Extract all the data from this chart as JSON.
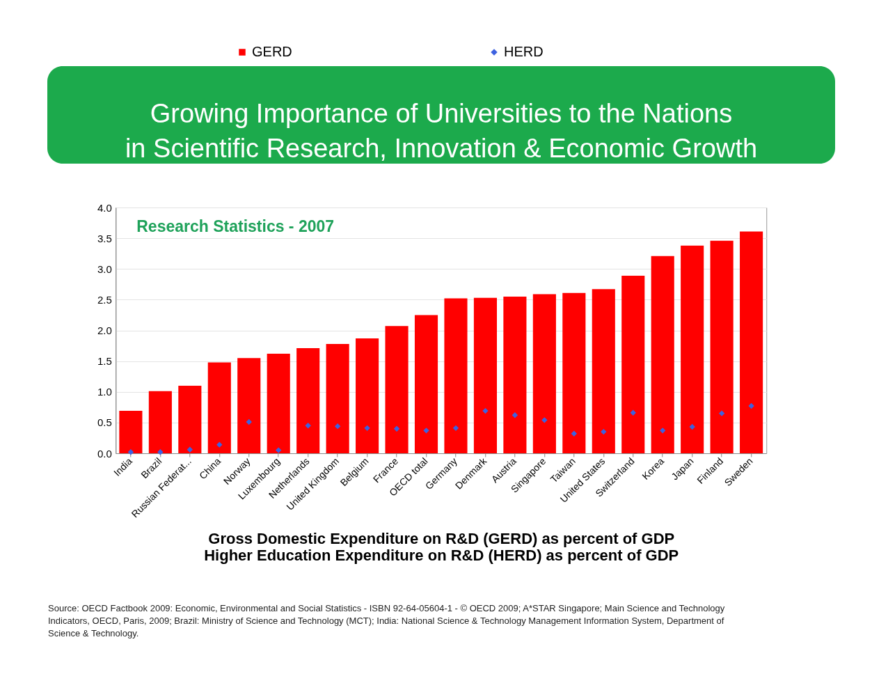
{
  "chart_data": {
    "type": "bar",
    "title": "Growing Importance of Universities to the Nations\nin Scientific Research, Innovation & Economic Growth",
    "xlabel": "Gross Domestic Expenditure on R&D (GERD) as percent of GDP\nHigher Education Expenditure on R&D (HERD) as percent of GDP",
    "categories": [
      "India",
      "Brazil",
      "Russian Federat...",
      "China",
      "Norway",
      "Luxembourg",
      "Netherlands",
      "United Kingdom",
      "Belgium",
      "France",
      "OECD total",
      "Germany",
      "Denmark",
      "Austria",
      "Singapore",
      "Taiwan",
      "United States",
      "Switzerland",
      "Korea",
      "Japan",
      "Finland",
      "Sweden"
    ],
    "series": [
      {
        "name": "GERD",
        "color": "#ff0000",
        "values": [
          0.69,
          1.01,
          1.1,
          1.48,
          1.55,
          1.62,
          1.71,
          1.78,
          1.87,
          2.07,
          2.25,
          2.52,
          2.53,
          2.55,
          2.59,
          2.61,
          2.67,
          2.89,
          3.21,
          3.38,
          3.46,
          3.61
        ]
      },
      {
        "name": "HERD",
        "type": "scatter",
        "marker": "diamond",
        "color": "#3d62e0",
        "values": [
          0.02,
          0.02,
          0.06,
          0.14,
          0.51,
          0.05,
          0.45,
          0.44,
          0.41,
          0.4,
          0.37,
          0.41,
          0.69,
          0.62,
          0.54,
          0.32,
          0.35,
          0.66,
          0.37,
          0.43,
          0.65,
          0.77
        ]
      }
    ],
    "ylim": [
      0,
      4
    ],
    "yticks": [
      {
        "value": 0,
        "label": "0.0"
      },
      {
        "value": 0.5,
        "label": "0.5"
      },
      {
        "value": 1,
        "label": "1.0"
      },
      {
        "value": 1.5,
        "label": "1.5"
      },
      {
        "value": 2,
        "label": "2.0"
      },
      {
        "value": 2.5,
        "label": "2.5"
      },
      {
        "value": 3,
        "label": "3.0"
      },
      {
        "value": 3.5,
        "label": "3.5"
      },
      {
        "value": 4,
        "label": "4.0"
      }
    ],
    "grid": "y",
    "legend": "top",
    "annotations": [
      "Research Statistics - 2007",
      "Source: OECD Factbook 2009: Economic, Environmental and Social Statistics - ISBN 92-64-05604-1 - © OECD 2009; A*STAR Singapore; Main Science and Technology Indicators, OECD, Paris, 2009; Brazil: Ministry of Science and Technology (MCT);  India: National Science & Technology Management Information System, Department of Science & Technology."
    ]
  }
}
